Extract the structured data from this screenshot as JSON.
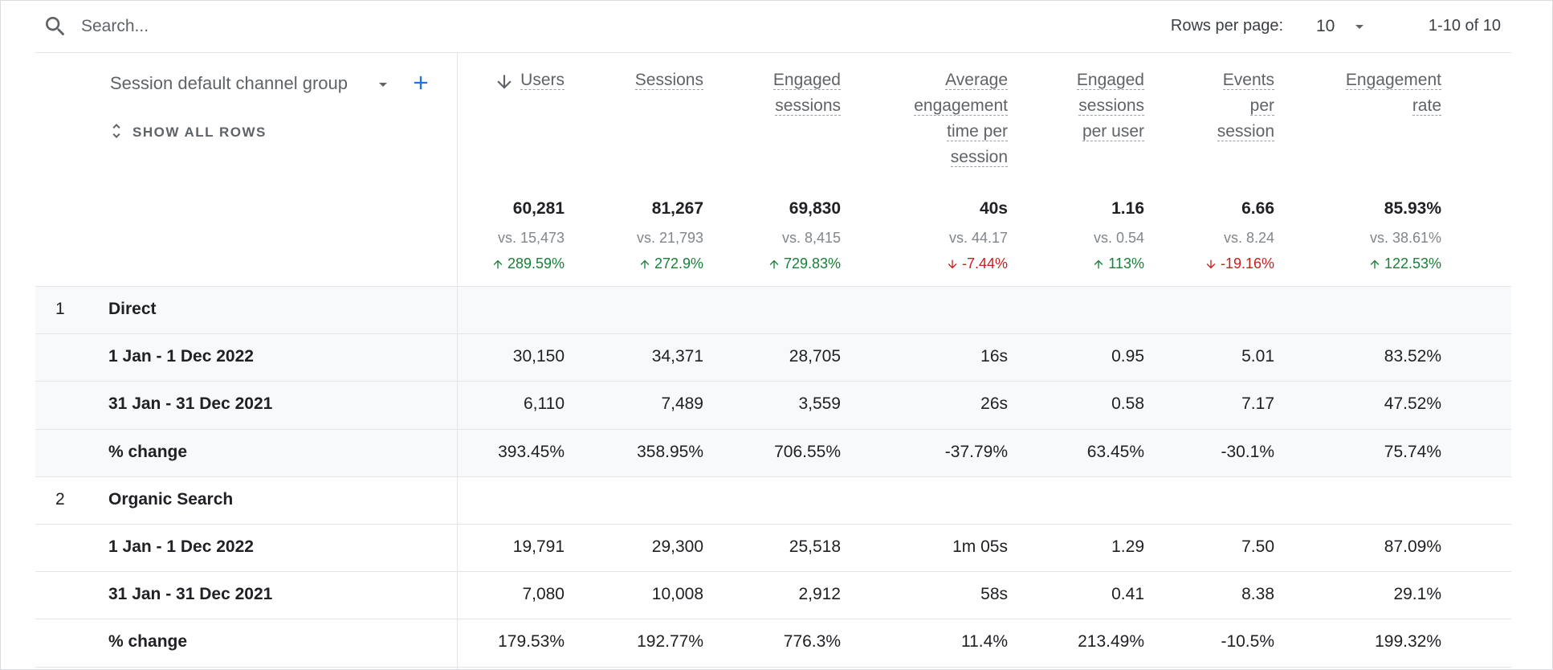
{
  "search": {
    "placeholder": "Search..."
  },
  "pagination": {
    "rows_per_page_label": "Rows per page:",
    "rows_per_page": "10",
    "range": "1-10 of 10"
  },
  "table": {
    "dimension": "Session default channel group",
    "show_all": "SHOW ALL ROWS",
    "columns": [
      {
        "label": [
          "Users"
        ],
        "total": "60,281",
        "compare": "vs. 15,473",
        "change": "289.59%",
        "trend": "up"
      },
      {
        "label": [
          "Sessions"
        ],
        "total": "81,267",
        "compare": "vs. 21,793",
        "change": "272.9%",
        "trend": "up"
      },
      {
        "label": [
          "Engaged",
          "sessions"
        ],
        "total": "69,830",
        "compare": "vs. 8,415",
        "change": "729.83%",
        "trend": "up"
      },
      {
        "label": [
          "Average",
          "engagement",
          "time per",
          "session"
        ],
        "total": "40s",
        "compare": "vs. 44.17",
        "change": "-7.44%",
        "trend": "down"
      },
      {
        "label": [
          "Engaged",
          "sessions",
          "per user"
        ],
        "total": "1.16",
        "compare": "vs. 0.54",
        "change": "113%",
        "trend": "up"
      },
      {
        "label": [
          "Events",
          "per",
          "session"
        ],
        "total": "6.66",
        "compare": "vs. 8.24",
        "change": "-19.16%",
        "trend": "down"
      },
      {
        "label": [
          "Engagement",
          "rate"
        ],
        "total": "85.93%",
        "compare": "vs. 38.61%",
        "change": "122.53%",
        "trend": "up"
      }
    ],
    "groups": [
      {
        "index": 1,
        "name": "Direct",
        "rows": [
          {
            "label": "1 Jan - 1 Dec 2022",
            "cells": [
              "30,150",
              "34,371",
              "28,705",
              "16s",
              "0.95",
              "5.01",
              "83.52%"
            ]
          },
          {
            "label": "31 Jan - 31 Dec 2021",
            "cells": [
              "6,110",
              "7,489",
              "3,559",
              "26s",
              "0.58",
              "7.17",
              "47.52%"
            ]
          },
          {
            "label": "% change",
            "cells": [
              "393.45%",
              "358.95%",
              "706.55%",
              "-37.79%",
              "63.45%",
              "-30.1%",
              "75.74%"
            ]
          }
        ]
      },
      {
        "index": 2,
        "name": "Organic Search",
        "rows": [
          {
            "label": "1 Jan - 1 Dec 2022",
            "cells": [
              "19,791",
              "29,300",
              "25,518",
              "1m 05s",
              "1.29",
              "7.50",
              "87.09%"
            ]
          },
          {
            "label": "31 Jan - 31 Dec 2021",
            "cells": [
              "7,080",
              "10,008",
              "2,912",
              "58s",
              "0.41",
              "8.38",
              "29.1%"
            ]
          },
          {
            "label": "% change",
            "cells": [
              "179.53%",
              "192.77%",
              "776.3%",
              "11.4%",
              "213.49%",
              "-10.5%",
              "199.32%"
            ]
          }
        ]
      }
    ]
  }
}
